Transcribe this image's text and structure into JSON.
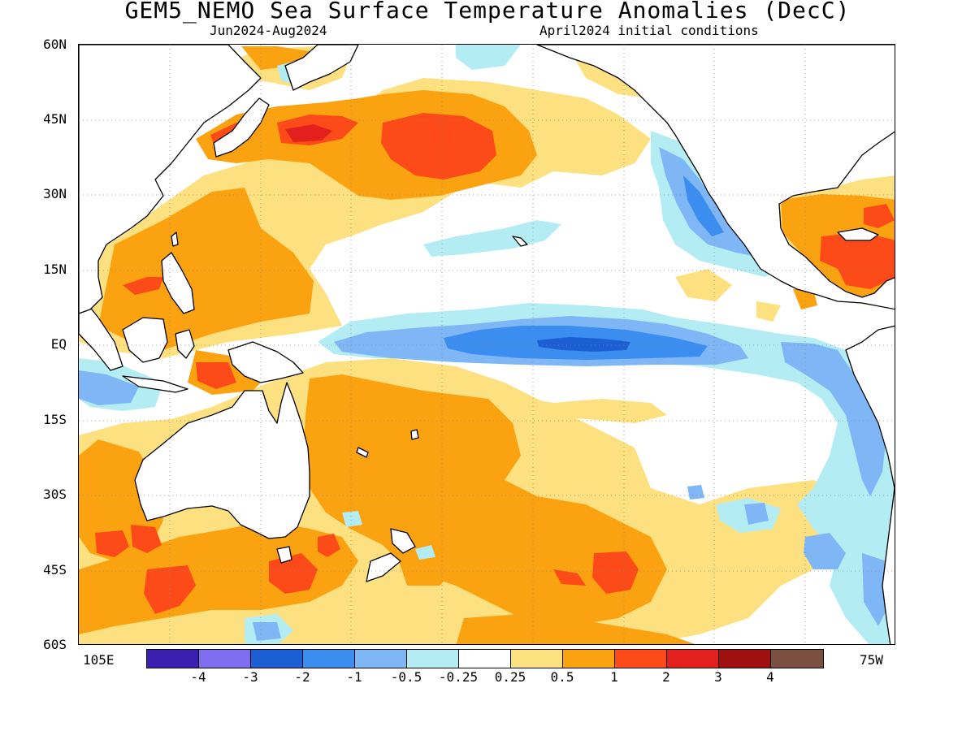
{
  "title": "GEM5_NEMO Sea Surface Temperature Anomalies (DecC)",
  "subtitle_left": "Jun2024-Aug2024",
  "subtitle_right": "April2024 initial conditions",
  "lat_labels": [
    "60N",
    "45N",
    "30N",
    "15N",
    "EQ",
    "15S",
    "30S",
    "45S",
    "60S"
  ],
  "lon_left_label": "105E",
  "lon_right_label": "75W",
  "legend": {
    "colors": [
      "#3a1fb0",
      "#7f6df0",
      "#1c5fd4",
      "#3b8ef0",
      "#7fb6f5",
      "#b4ecf4",
      "#ffffff",
      "#fde080",
      "#fba210",
      "#fc4a18",
      "#e4201e",
      "#a01010",
      "#7c5040"
    ],
    "labels": [
      "-4",
      "-3",
      "-2",
      "-1",
      "-0.5",
      "-0.25",
      "0.25",
      "0.5",
      "1",
      "2",
      "3",
      "4"
    ]
  },
  "colors": {
    "weak_warm": "#fde080",
    "warm": "#fba210",
    "strong_warm": "#fc4a18",
    "very_strong_warm": "#e4201e",
    "extreme_warm": "#a01010",
    "weak_cool": "#b4ecf4",
    "cool": "#7fb6f5",
    "strong_cool": "#3b8ef0",
    "very_strong_cool": "#1c5fd4",
    "land": "#ffffff",
    "coastline": "#000000"
  }
}
